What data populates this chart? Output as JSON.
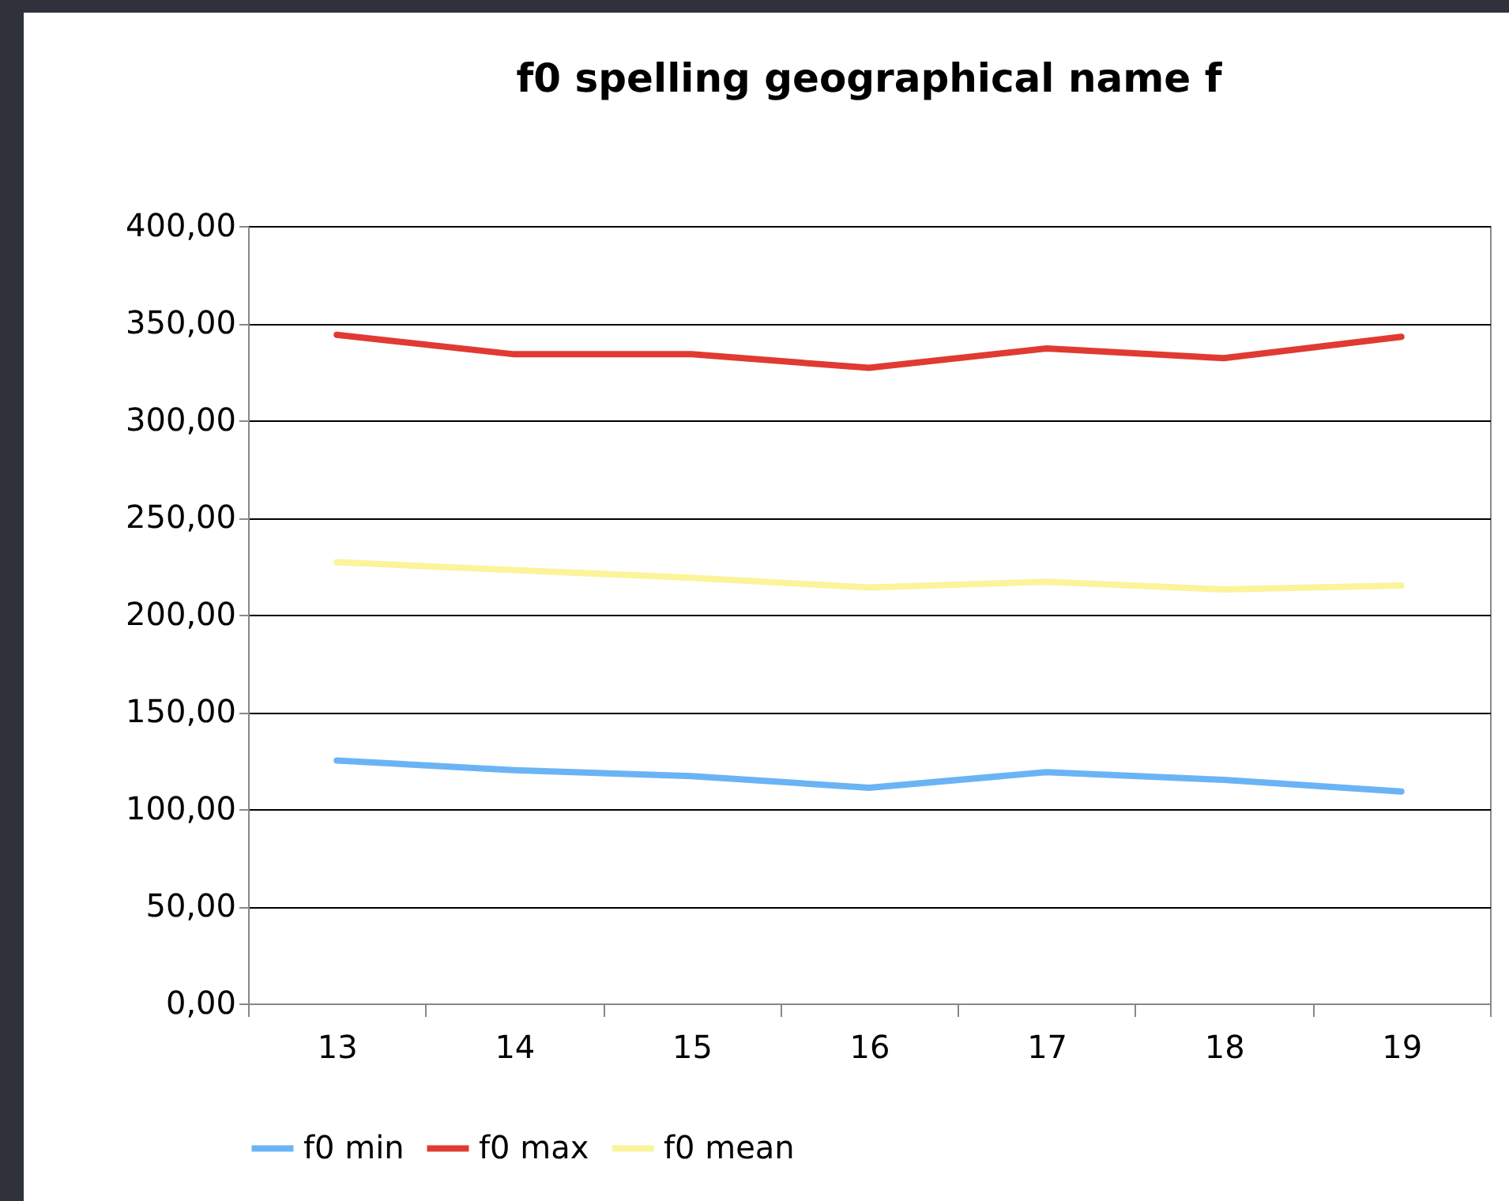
{
  "chart_data": {
    "type": "line",
    "title": "f0 spelling geographical name f",
    "categories": [
      "13",
      "14",
      "15",
      "16",
      "17",
      "18",
      "19"
    ],
    "series": [
      {
        "name": "f0 min",
        "color": "#6ab4f5",
        "values": [
          125,
          120,
          117,
          111,
          119,
          115,
          109
        ]
      },
      {
        "name": "f0 max",
        "color": "#e03a32",
        "values": [
          344,
          334,
          334,
          327,
          337,
          332,
          343
        ]
      },
      {
        "name": "f0 mean",
        "color": "#fbf49a",
        "values": [
          227,
          223,
          219,
          214,
          217,
          213,
          215
        ]
      }
    ],
    "ylim": [
      0,
      400
    ],
    "yticks": [
      {
        "value": 0,
        "label": "0,00"
      },
      {
        "value": 50,
        "label": "50,00"
      },
      {
        "value": 100,
        "label": "100,00"
      },
      {
        "value": 150,
        "label": "150,00"
      },
      {
        "value": 200,
        "label": "200,00"
      },
      {
        "value": 250,
        "label": "250,00"
      },
      {
        "value": 300,
        "label": "300,00"
      },
      {
        "value": 350,
        "label": "350,00"
      },
      {
        "value": 400,
        "label": "400,00"
      }
    ],
    "grid": "y",
    "legend": "bottom",
    "marker": "none",
    "line_style": "solid"
  }
}
